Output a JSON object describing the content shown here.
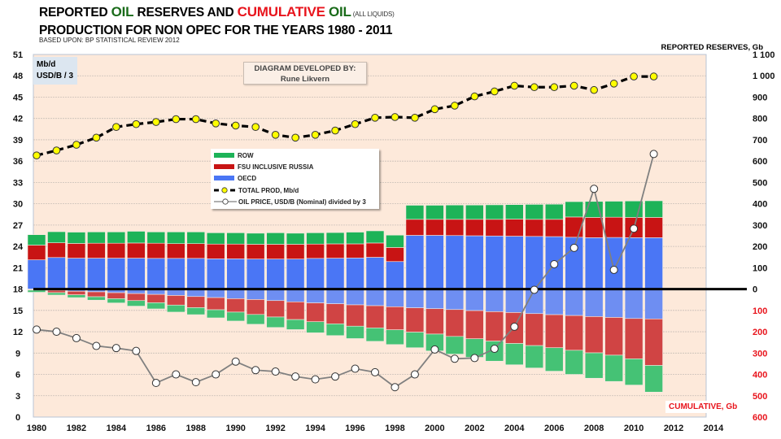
{
  "title": {
    "part1": "REPORTED ",
    "oil1": "OIL",
    "part2": " RESERVES AND ",
    "cumulative": "CUMULATIVE",
    "space": " ",
    "oil2": "OIL",
    "all_liquids": " (ALL LIQUIDS)",
    "line2": "PRODUCTION FOR NON OPEC FOR THE YEARS 1980 - 2011",
    "source": "BASED UPON: BP STATISTICAL REVIEW 2012"
  },
  "unit_box": {
    "line1": "Mb/d",
    "line2": "USD/B / 3"
  },
  "credit": {
    "line1": "DIAGRAM DEVELOPED BY:",
    "line2": "Rune Likvern"
  },
  "right_axis_title": "REPORTED RESERVES, Gb",
  "cumulative_label": "CUMULATIVE, Gb",
  "legend": [
    {
      "label": "ROW"
    },
    {
      "label": "FSU INCLUSIVE RUSSIA"
    },
    {
      "label": "OECD"
    },
    {
      "label": "TOTAL PROD, Mb/d"
    },
    {
      "label": "OIL PRICE, USD/B (Nominal) divided by 3"
    }
  ],
  "colors": {
    "plot_bg": "#fde9da",
    "row": "#1db358",
    "fsu": "#c81414",
    "oecd": "#4a76f5",
    "row_cum": "#45c275",
    "fsu_cum": "#d04444",
    "oecd_cum": "#6e8ef2",
    "prod_marker": "#ffff00",
    "price_line": "#808080",
    "cumulative_text": "#e8141c"
  },
  "chart_data": {
    "type": "bar",
    "title": "REPORTED OIL RESERVES AND CUMULATIVE OIL (ALL LIQUIDS) PRODUCTION FOR NON OPEC FOR THE YEARS 1980 - 2011",
    "subtitle": "BASED UPON: BP STATISTICAL REVIEW 2012",
    "xlabel": "",
    "ylabel_left": "Mb/d, USD/B / 3",
    "ylabel_right_upper": "REPORTED RESERVES, Gb",
    "ylabel_right_lower": "CUMULATIVE, Gb",
    "x_ticks": [
      "1980",
      "1982",
      "1984",
      "1986",
      "1988",
      "1990",
      "1992",
      "1994",
      "1996",
      "1998",
      "2000",
      "2002",
      "2004",
      "2006",
      "2008",
      "2010",
      "2012",
      "2014"
    ],
    "xlim": [
      1979.5,
      2015.5
    ],
    "left_ylim": [
      0,
      51
    ],
    "left_yticks": [
      "0",
      "3",
      "6",
      "9",
      "12",
      "15",
      "18",
      "21",
      "24",
      "27",
      "30",
      "33",
      "36",
      "39",
      "42",
      "45",
      "48",
      "51"
    ],
    "right_yticks_upper": [
      "0",
      "100",
      "200",
      "300",
      "400",
      "500",
      "600",
      "700",
      "800",
      "900",
      "1 000",
      "1 100"
    ],
    "right_yticks_lower": [
      "100",
      "200",
      "300",
      "400",
      "500",
      "600"
    ],
    "baseline_left_value": 18,
    "grid": true,
    "legend_position": "center-left",
    "years": [
      1980,
      1981,
      1982,
      1983,
      1984,
      1985,
      1986,
      1987,
      1988,
      1989,
      1990,
      1991,
      1992,
      1993,
      1994,
      1995,
      1996,
      1997,
      1998,
      1999,
      2000,
      2001,
      2002,
      2003,
      2004,
      2005,
      2006,
      2007,
      2008,
      2009,
      2010,
      2011
    ],
    "reserves_gb": {
      "oecd": [
        137,
        148,
        145,
        145,
        145,
        145,
        144,
        144,
        144,
        142,
        142,
        141,
        141,
        141,
        144,
        145,
        146,
        149,
        129,
        252,
        252,
        251,
        250,
        249,
        248,
        247,
        246,
        243,
        241,
        242,
        241,
        241
      ],
      "fsu": [
        69,
        69,
        69,
        70,
        70,
        71,
        71,
        69,
        69,
        69,
        69,
        69,
        69,
        69,
        67,
        67,
        66,
        67,
        66,
        75,
        75,
        76,
        77,
        78,
        80,
        80,
        81,
        95,
        95,
        95,
        95,
        95
      ],
      "row": [
        49,
        52,
        53,
        53,
        53,
        55,
        53,
        55,
        55,
        53,
        53,
        52,
        54,
        52,
        53,
        53,
        55,
        57,
        58,
        66,
        66,
        67,
        67,
        68,
        68,
        70,
        71,
        72,
        75,
        75,
        77,
        78
      ]
    },
    "cumulative_gb": {
      "oecd": [
        2,
        6,
        10,
        13,
        17,
        21,
        25,
        30,
        35,
        40,
        45,
        49,
        54,
        60,
        65,
        69,
        74,
        78,
        83,
        88,
        92,
        96,
        101,
        106,
        110,
        115,
        120,
        124,
        129,
        133,
        138,
        140
      ],
      "fsu": [
        3,
        11,
        17,
        23,
        28,
        33,
        39,
        45,
        52,
        57,
        63,
        70,
        77,
        83,
        88,
        94,
        100,
        104,
        108,
        114,
        119,
        126,
        132,
        138,
        145,
        150,
        155,
        163,
        170,
        177,
        189,
        218
      ],
      "row": [
        10,
        11,
        13,
        16,
        20,
        26,
        29,
        33,
        33,
        38,
        42,
        46,
        49,
        47,
        52,
        55,
        58,
        63,
        69,
        73,
        79,
        83,
        87,
        94,
        100,
        105,
        110,
        113,
        119,
        123,
        123,
        125
      ]
    },
    "series": [
      {
        "name": "TOTAL PROD, Mb/d",
        "type": "line",
        "axis": "left",
        "values": [
          36.8,
          37.5,
          38.3,
          39.3,
          40.8,
          41.2,
          41.5,
          41.9,
          41.9,
          41.3,
          41.0,
          40.8,
          39.7,
          39.3,
          39.7,
          40.3,
          41.2,
          42.1,
          42.2,
          42.1,
          43.3,
          43.8,
          45.1,
          45.8,
          46.6,
          46.4,
          46.4,
          46.6,
          46.0,
          46.9,
          47.9,
          47.9
        ]
      },
      {
        "name": "OIL PRICE, USD/B (Nominal) divided by 3",
        "type": "line",
        "axis": "left",
        "values": [
          12.3,
          12.0,
          11.1,
          10.0,
          9.7,
          9.3,
          4.8,
          6.0,
          4.9,
          6.0,
          7.8,
          6.6,
          6.4,
          5.7,
          5.3,
          5.7,
          6.8,
          6.3,
          4.2,
          6.0,
          9.5,
          8.2,
          8.3,
          9.6,
          12.7,
          17.9,
          21.5,
          23.8,
          32.1,
          20.7,
          26.5,
          37.0
        ]
      }
    ]
  }
}
